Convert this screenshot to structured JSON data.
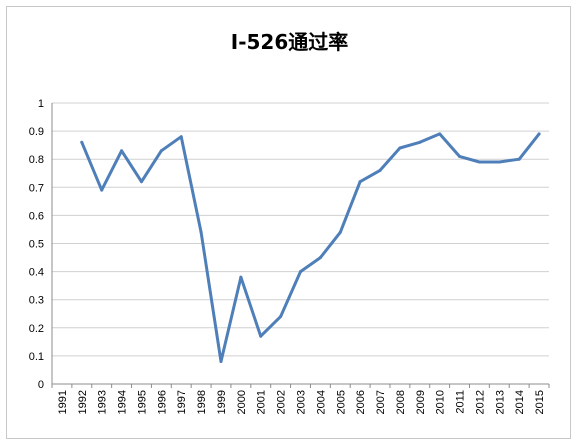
{
  "chart_data": {
    "type": "line",
    "title": "I-526通过率",
    "x": [
      "1991",
      "1992",
      "1993",
      "1994",
      "1995",
      "1996",
      "1997",
      "1998",
      "1999",
      "2000",
      "2001",
      "2002",
      "2003",
      "2004",
      "2005",
      "2006",
      "2007",
      "2008",
      "2009",
      "2010",
      "2011",
      "2012",
      "2013",
      "2014",
      "2015"
    ],
    "series": [
      {
        "values": [
          null,
          0.86,
          0.69,
          0.83,
          0.72,
          0.83,
          0.88,
          0.54,
          0.08,
          0.38,
          0.17,
          0.24,
          0.4,
          0.45,
          0.54,
          0.72,
          0.76,
          0.84,
          0.86,
          0.89,
          0.81,
          0.79,
          0.79,
          0.8,
          0.89
        ],
        "color": "#4f7fb9"
      }
    ],
    "yticks": [
      "0",
      "0.1",
      "0.2",
      "0.3",
      "0.4",
      "0.5",
      "0.6",
      "0.7",
      "0.8",
      "0.9",
      "1"
    ],
    "ylim": [
      0,
      1
    ],
    "grid": true,
    "legend": "none",
    "xlabel": "",
    "ylabel": ""
  }
}
